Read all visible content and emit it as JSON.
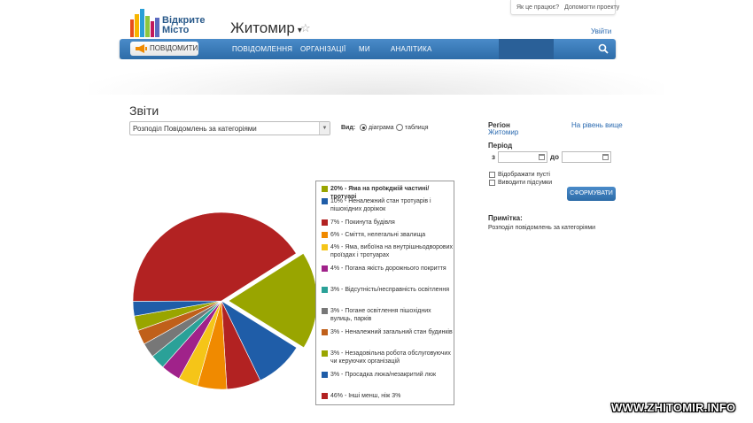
{
  "brand": {
    "line1": "Відкрите",
    "line2": "Місто"
  },
  "header": {
    "city": "Житомир",
    "caret": "▾",
    "star": "☆",
    "login": "Увійти"
  },
  "toplinks": {
    "how_it_works": "Як це працює?",
    "help_project": "Допомогти проекту"
  },
  "nav": {
    "report_button": "ПОВІДОМИТИ",
    "items": [
      "ПОВІДОМЛЕННЯ",
      "ОРГАНІЗАЦІЇ",
      "МИ",
      "АНАЛІТИКА"
    ],
    "active": "АНАЛІТИКА"
  },
  "reports": {
    "title": "Звіти",
    "selected_report": "Розподіл Повідомлень за категоріями",
    "view_label": "Вид:",
    "view_options": [
      "діаграма",
      "таблиця"
    ],
    "view_selected": "діаграма"
  },
  "sidebar": {
    "region_label": "Регіон",
    "region_value": "Житомир",
    "level_up": "На рівень вище",
    "period_label": "Період",
    "from_label": "з",
    "to_label": "до",
    "from_value": "",
    "to_value": "",
    "show_empty": "Відображати пусті",
    "show_totals": "Виводити підсумки",
    "submit": "СФОРМУВАТИ",
    "note_label": "Примітка:",
    "note_text": "Розподіл повідомлень за категоріями"
  },
  "watermark": "WWW.ZHITOMIR.INFO",
  "colors": {
    "nav": "#3a7bbb",
    "link": "#2a6ab0"
  },
  "chart_data": {
    "type": "pie",
    "title": "",
    "series": [
      {
        "label": "20% - Яма на проїжджій частині/тротуарі",
        "value": 20,
        "color": "#99a500",
        "bold": true,
        "exploded": true
      },
      {
        "label": "10% - Неналежний стан тротуарів і пішохідних доріжок",
        "value": 10,
        "color": "#1f5da8"
      },
      {
        "label": "7% - Покинута будівля",
        "value": 7,
        "color": "#b22222"
      },
      {
        "label": "6% - Сміття, нелегальні звалища",
        "value": 6,
        "color": "#f08a00"
      },
      {
        "label": "4% - Яма, вибоїна на внутрішньодворових проїздах і тротуарах",
        "value": 4,
        "color": "#f5c518"
      },
      {
        "label": "4% - Погана якість дорожнього покриття",
        "value": 4,
        "color": "#a0228a"
      },
      {
        "label": "3% - Відсутність/несправність освітлення",
        "value": 3,
        "color": "#2aa198"
      },
      {
        "label": "3% - Погане освітлення пішохідних вулиць, парків",
        "value": 3,
        "color": "#777777"
      },
      {
        "label": "3% - Неналежний загальний стан будинків",
        "value": 3,
        "color": "#c0601a"
      },
      {
        "label": "3% - Незадовільна робота обслуговуючих чи керуючих організацій",
        "value": 3,
        "color": "#99a500"
      },
      {
        "label": "3% - Просадка люка/незакритий люк",
        "value": 3,
        "color": "#1f5da8"
      },
      {
        "label": "46% - Інші менш, ніж 3%",
        "value": 46,
        "color": "#b22222"
      }
    ]
  }
}
